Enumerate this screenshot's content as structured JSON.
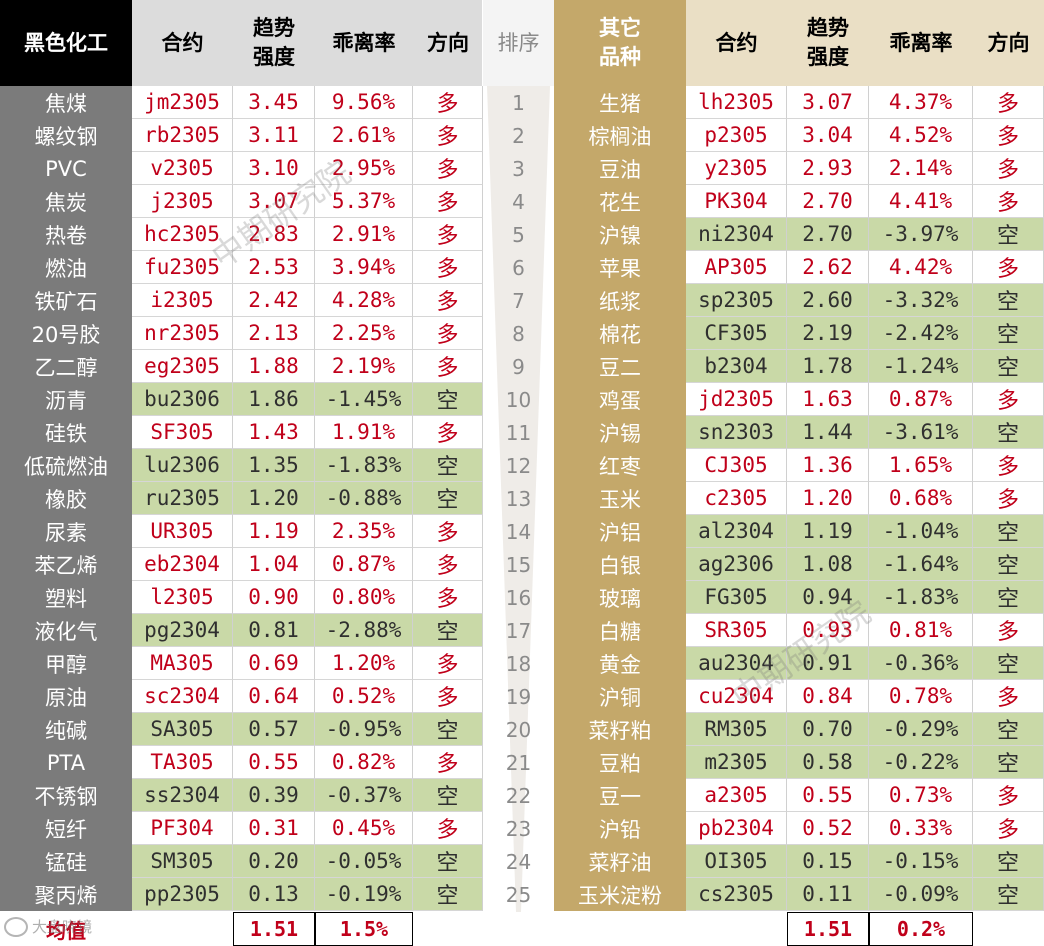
{
  "left": {
    "headers": [
      "黑色化工",
      "合约",
      "趋势\n强度",
      "乖离率",
      "方向"
    ],
    "rows": [
      {
        "name": "焦煤",
        "contract": "jm2305",
        "strength": "3.45",
        "deviation": "9.56%",
        "dir": "多"
      },
      {
        "name": "螺纹钢",
        "contract": "rb2305",
        "strength": "3.11",
        "deviation": "2.61%",
        "dir": "多"
      },
      {
        "name": "PVC",
        "contract": "v2305",
        "strength": "3.10",
        "deviation": "2.95%",
        "dir": "多"
      },
      {
        "name": "焦炭",
        "contract": "j2305",
        "strength": "3.07",
        "deviation": "5.37%",
        "dir": "多"
      },
      {
        "name": "热卷",
        "contract": "hc2305",
        "strength": "2.83",
        "deviation": "2.91%",
        "dir": "多"
      },
      {
        "name": "燃油",
        "contract": "fu2305",
        "strength": "2.53",
        "deviation": "3.94%",
        "dir": "多"
      },
      {
        "name": "铁矿石",
        "contract": "i2305",
        "strength": "2.42",
        "deviation": "4.28%",
        "dir": "多"
      },
      {
        "name": "20号胶",
        "contract": "nr2305",
        "strength": "2.13",
        "deviation": "2.25%",
        "dir": "多"
      },
      {
        "name": "乙二醇",
        "contract": "eg2305",
        "strength": "1.88",
        "deviation": "2.19%",
        "dir": "多"
      },
      {
        "name": "沥青",
        "contract": "bu2306",
        "strength": "1.86",
        "deviation": "-1.45%",
        "dir": "空"
      },
      {
        "name": "硅铁",
        "contract": "SF305",
        "strength": "1.43",
        "deviation": "1.91%",
        "dir": "多"
      },
      {
        "name": "低硫燃油",
        "contract": "lu2306",
        "strength": "1.35",
        "deviation": "-1.83%",
        "dir": "空"
      },
      {
        "name": "橡胶",
        "contract": "ru2305",
        "strength": "1.20",
        "deviation": "-0.88%",
        "dir": "空"
      },
      {
        "name": "尿素",
        "contract": "UR305",
        "strength": "1.19",
        "deviation": "2.35%",
        "dir": "多"
      },
      {
        "name": "苯乙烯",
        "contract": "eb2304",
        "strength": "1.04",
        "deviation": "0.87%",
        "dir": "多"
      },
      {
        "name": "塑料",
        "contract": "l2305",
        "strength": "0.90",
        "deviation": "0.80%",
        "dir": "多"
      },
      {
        "name": "液化气",
        "contract": "pg2304",
        "strength": "0.81",
        "deviation": "-2.88%",
        "dir": "空"
      },
      {
        "name": "甲醇",
        "contract": "MA305",
        "strength": "0.69",
        "deviation": "1.20%",
        "dir": "多"
      },
      {
        "name": "原油",
        "contract": "sc2304",
        "strength": "0.64",
        "deviation": "0.52%",
        "dir": "多"
      },
      {
        "name": "纯碱",
        "contract": "SA305",
        "strength": "0.57",
        "deviation": "-0.95%",
        "dir": "空"
      },
      {
        "name": "PTA",
        "contract": "TA305",
        "strength": "0.55",
        "deviation": "0.82%",
        "dir": "多"
      },
      {
        "name": "不锈钢",
        "contract": "ss2304",
        "strength": "0.39",
        "deviation": "-0.37%",
        "dir": "空"
      },
      {
        "name": "短纤",
        "contract": "PF304",
        "strength": "0.31",
        "deviation": "0.45%",
        "dir": "多"
      },
      {
        "name": "锰硅",
        "contract": "SM305",
        "strength": "0.20",
        "deviation": "-0.05%",
        "dir": "空"
      },
      {
        "name": "聚丙烯",
        "contract": "pp2305",
        "strength": "0.13",
        "deviation": "-0.19%",
        "dir": "空"
      }
    ],
    "avg_label": "均值",
    "avg_strength": "1.51",
    "avg_deviation": "1.5%"
  },
  "rank": {
    "header": "排序",
    "values": [
      "1",
      "2",
      "3",
      "4",
      "5",
      "6",
      "7",
      "8",
      "9",
      "10",
      "11",
      "12",
      "13",
      "14",
      "15",
      "16",
      "17",
      "18",
      "19",
      "20",
      "21",
      "22",
      "23",
      "24",
      "25"
    ]
  },
  "right": {
    "headers": [
      "其它\n品种",
      "合约",
      "趋势\n强度",
      "乖离率",
      "方向"
    ],
    "rows": [
      {
        "name": "生猪",
        "contract": "lh2305",
        "strength": "3.07",
        "deviation": "4.37%",
        "dir": "多"
      },
      {
        "name": "棕榈油",
        "contract": "p2305",
        "strength": "3.04",
        "deviation": "4.52%",
        "dir": "多"
      },
      {
        "name": "豆油",
        "contract": "y2305",
        "strength": "2.93",
        "deviation": "2.14%",
        "dir": "多"
      },
      {
        "name": "花生",
        "contract": "PK304",
        "strength": "2.70",
        "deviation": "4.41%",
        "dir": "多"
      },
      {
        "name": "沪镍",
        "contract": "ni2304",
        "strength": "2.70",
        "deviation": "-3.97%",
        "dir": "空"
      },
      {
        "name": "苹果",
        "contract": "AP305",
        "strength": "2.62",
        "deviation": "4.42%",
        "dir": "多"
      },
      {
        "name": "纸浆",
        "contract": "sp2305",
        "strength": "2.60",
        "deviation": "-3.32%",
        "dir": "空"
      },
      {
        "name": "棉花",
        "contract": "CF305",
        "strength": "2.19",
        "deviation": "-2.42%",
        "dir": "空"
      },
      {
        "name": "豆二",
        "contract": "b2304",
        "strength": "1.78",
        "deviation": "-1.24%",
        "dir": "空"
      },
      {
        "name": "鸡蛋",
        "contract": "jd2305",
        "strength": "1.63",
        "deviation": "0.87%",
        "dir": "多"
      },
      {
        "name": "沪锡",
        "contract": "sn2303",
        "strength": "1.44",
        "deviation": "-3.61%",
        "dir": "空"
      },
      {
        "name": "红枣",
        "contract": "CJ305",
        "strength": "1.36",
        "deviation": "1.65%",
        "dir": "多"
      },
      {
        "name": "玉米",
        "contract": "c2305",
        "strength": "1.20",
        "deviation": "0.68%",
        "dir": "多"
      },
      {
        "name": "沪铝",
        "contract": "al2304",
        "strength": "1.19",
        "deviation": "-1.04%",
        "dir": "空"
      },
      {
        "name": "白银",
        "contract": "ag2306",
        "strength": "1.08",
        "deviation": "-1.64%",
        "dir": "空"
      },
      {
        "name": "玻璃",
        "contract": "FG305",
        "strength": "0.94",
        "deviation": "-1.83%",
        "dir": "空"
      },
      {
        "name": "白糖",
        "contract": "SR305",
        "strength": "0.93",
        "deviation": "0.81%",
        "dir": "多"
      },
      {
        "name": "黄金",
        "contract": "au2304",
        "strength": "0.91",
        "deviation": "-0.36%",
        "dir": "空"
      },
      {
        "name": "沪铜",
        "contract": "cu2304",
        "strength": "0.84",
        "deviation": "0.78%",
        "dir": "多"
      },
      {
        "name": "菜籽粕",
        "contract": "RM305",
        "strength": "0.70",
        "deviation": "-0.29%",
        "dir": "空"
      },
      {
        "name": "豆粕",
        "contract": "m2305",
        "strength": "0.58",
        "deviation": "-0.22%",
        "dir": "空"
      },
      {
        "name": "豆一",
        "contract": "a2305",
        "strength": "0.55",
        "deviation": "0.73%",
        "dir": "多"
      },
      {
        "name": "沪铅",
        "contract": "pb2304",
        "strength": "0.52",
        "deviation": "0.33%",
        "dir": "多"
      },
      {
        "name": "菜籽油",
        "contract": "OI305",
        "strength": "0.15",
        "deviation": "-0.15%",
        "dir": "空"
      },
      {
        "name": "玉米淀粉",
        "contract": "cs2305",
        "strength": "0.11",
        "deviation": "-0.09%",
        "dir": "空"
      }
    ],
    "avg_strength": "1.51",
    "avg_deviation": "0.2%"
  },
  "watermark": "中期研究院",
  "corner_logo": "大盘晓镜",
  "colors": {
    "long_text": "#c0001a",
    "short_fill": "#c9d9a7",
    "left_label_bg": "#7b7b7b",
    "right_label_bg": "#c4a86a",
    "left_header_bg": "#000000",
    "right_header_bg": "#c4a86a"
  }
}
